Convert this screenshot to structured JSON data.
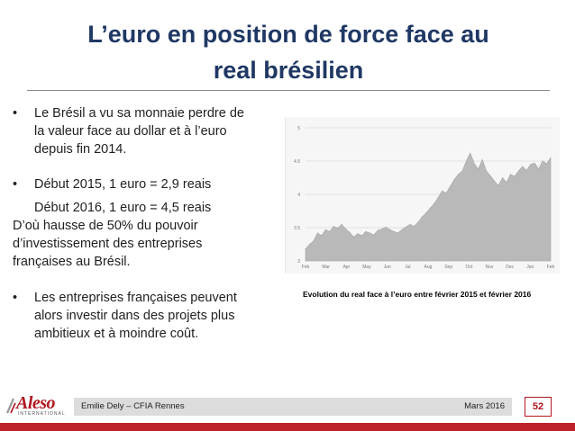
{
  "title": {
    "line1": "L’euro en position de force face au",
    "line2": "real brésilien"
  },
  "bullets": {
    "bullet_glyph": "•",
    "b1": [
      "Le Brésil a vu sa monnaie perdre de",
      "la valeur face au dollar et à l’euro",
      "depuis fin 2014."
    ],
    "b2_line1": "Début 2015, 1 euro = 2,9 reais",
    "b2_line2": "Début 2016, 1 euro = 4,5 reais",
    "b2_follow": [
      "D’où hausse de 50% du pouvoir",
      "d’investissement des entreprises",
      "françaises au Brésil."
    ],
    "b3": [
      "Les entreprises françaises peuvent",
      "alors investir dans des projets plus",
      "ambitieux et à moindre coût."
    ]
  },
  "chart": {
    "caption": "Evolution du real face à l’euro entre février 2015 et février 2016"
  },
  "chart_data": {
    "type": "area",
    "title": "",
    "xlabel": "",
    "ylabel": "",
    "ylim": [
      3,
      5
    ],
    "yticks": [
      "3",
      "3.5",
      "4",
      "4.5",
      "5"
    ],
    "xticks": [
      "Feb",
      "Mar",
      "Apr",
      "May",
      "Jun",
      "Jul",
      "Aug",
      "Sep",
      "Oct",
      "Nov",
      "Dec",
      "Jan",
      "Feb"
    ],
    "grid": true,
    "fill_color": "#b9b9b9",
    "series": [
      {
        "values": [
          3.18,
          3.25,
          3.3,
          3.42,
          3.38,
          3.47,
          3.44,
          3.52,
          3.49,
          3.55,
          3.48,
          3.43,
          3.36,
          3.41,
          3.38,
          3.44,
          3.42,
          3.39,
          3.46,
          3.48,
          3.51,
          3.47,
          3.44,
          3.42,
          3.47,
          3.51,
          3.55,
          3.52,
          3.58,
          3.66,
          3.72,
          3.79,
          3.86,
          3.95,
          4.05,
          4.02,
          4.12,
          4.22,
          4.3,
          4.35,
          4.5,
          4.62,
          4.46,
          4.38,
          4.52,
          4.35,
          4.28,
          4.2,
          4.13,
          4.25,
          4.18,
          4.3,
          4.27,
          4.35,
          4.42,
          4.36,
          4.45,
          4.47,
          4.38,
          4.5,
          4.46,
          4.55
        ]
      }
    ]
  },
  "footer": {
    "logo_text": "Aleso",
    "logo_sub": "INTERNATIONAL",
    "left": "Emilie Dely – CFIA Rennes",
    "right": "Mars 2016",
    "page": "52",
    "accent": "#c0202a"
  }
}
